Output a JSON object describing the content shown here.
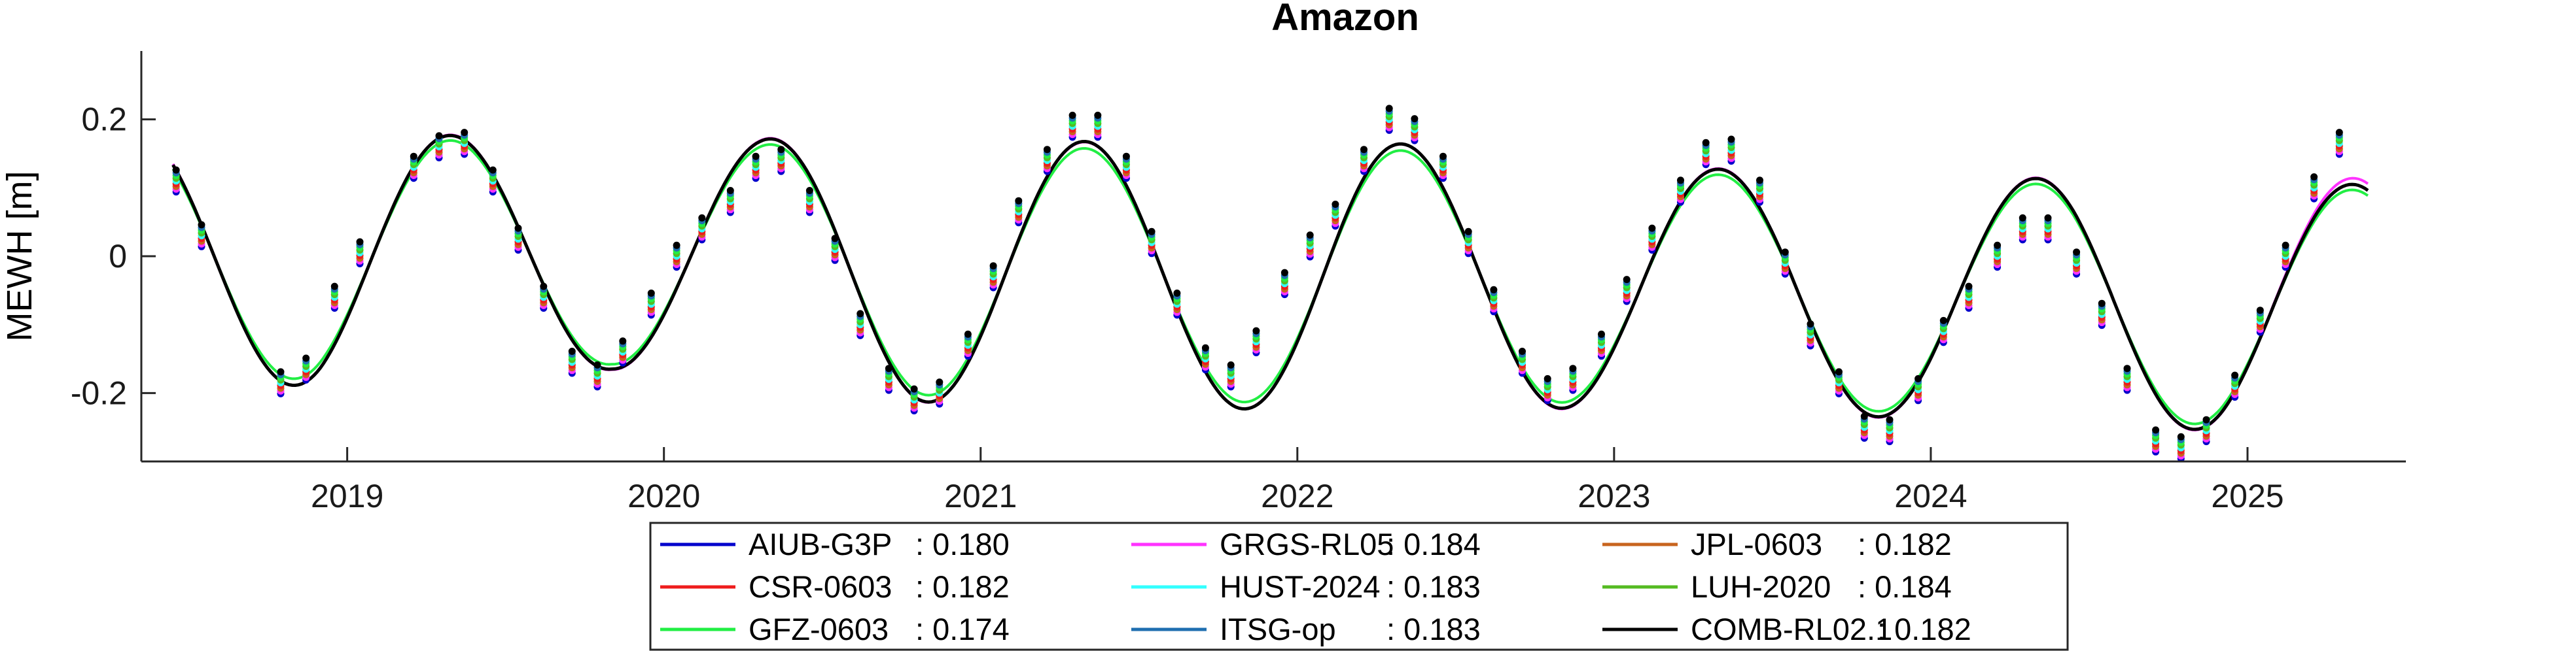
{
  "chart_data": {
    "type": "line",
    "title": "Amazon",
    "xlabel": "",
    "ylabel": "MEWH [m]",
    "xlim": [
      2018.35,
      2025.5
    ],
    "ylim": [
      -0.3,
      0.3
    ],
    "x_ticks": [
      2019,
      2020,
      2021,
      2022,
      2023,
      2024,
      2025
    ],
    "x_tick_labels": [
      "2019",
      "2020",
      "2021",
      "2022",
      "2023",
      "2024",
      "2025"
    ],
    "y_ticks": [
      -0.2,
      0,
      0.2
    ],
    "y_tick_labels": [
      "-0.2",
      "0",
      "0.2"
    ],
    "grid": false,
    "legend_position": "bottom-center",
    "fit": {
      "period_years": 1.0,
      "phase_peak_year_fraction": 0.33,
      "start_x": 2018.45,
      "end_x": 2025.38
    },
    "series": [
      {
        "name": "AIUB-G3P",
        "value": "0.180",
        "color": "#0000cc"
      },
      {
        "name": "GRGS-RL05",
        "value": "0.184",
        "color": "#ff33ff"
      },
      {
        "name": "JPL-0603",
        "value": "0.182",
        "color": "#c8641e"
      },
      {
        "name": "CSR-0603",
        "value": "0.182",
        "color": "#ee1c1c"
      },
      {
        "name": "HUST-2024",
        "value": "0.183",
        "color": "#33ffff"
      },
      {
        "name": "LUH-2020",
        "value": "0.184",
        "color": "#55bb22"
      },
      {
        "name": "GFZ-0603",
        "value": "0.174",
        "color": "#22ee44"
      },
      {
        "name": "ITSG-op",
        "value": "0.183",
        "color": "#1f6fb0"
      },
      {
        "name": "COMB-RL02.1",
        "value": "0.182",
        "color": "#000000"
      }
    ],
    "fitted_curves": [
      {
        "name": "AIUB-G3P",
        "color": "#0000cc",
        "amplitudes": [
          0.183,
          0.19,
          0.175,
          0.165,
          0.18,
          0.2,
          0.2,
          0.19,
          0.2,
          0.185,
          0.18,
          0.175,
          0.175,
          0.18,
          0.18,
          0.18
        ],
        "offsets": [
          0,
          0,
          0,
          0,
          -0.01,
          -0.01,
          -0.03,
          -0.03,
          -0.03,
          -0.03,
          -0.05,
          -0.05,
          -0.065,
          -0.065,
          -0.075,
          -0.075
        ]
      },
      {
        "name": "GRGS-RL05",
        "color": "#ff33ff",
        "amplitudes": [
          0.185,
          0.19,
          0.176,
          0.166,
          0.181,
          0.201,
          0.199,
          0.19,
          0.199,
          0.186,
          0.181,
          0.176,
          0.176,
          0.181,
          0.181,
          0.185
        ],
        "offsets": [
          0,
          0,
          0,
          0,
          -0.01,
          -0.01,
          -0.03,
          -0.03,
          -0.03,
          -0.03,
          -0.05,
          -0.05,
          -0.065,
          -0.065,
          -0.075,
          -0.07
        ]
      },
      {
        "name": "JPL-0603",
        "color": "#c8641e",
        "amplitudes": [
          0.183,
          0.19,
          0.175,
          0.165,
          0.18,
          0.2,
          0.2,
          0.19,
          0.2,
          0.185,
          0.18,
          0.175,
          0.175,
          0.18,
          0.18,
          0.18
        ],
        "offsets": [
          0,
          0,
          0,
          0,
          -0.01,
          -0.01,
          -0.03,
          -0.03,
          -0.03,
          -0.03,
          -0.05,
          -0.05,
          -0.065,
          -0.065,
          -0.075,
          -0.075
        ]
      },
      {
        "name": "CSR-0603",
        "color": "#ee1c1c",
        "amplitudes": [
          0.183,
          0.19,
          0.175,
          0.165,
          0.18,
          0.2,
          0.2,
          0.19,
          0.2,
          0.185,
          0.18,
          0.175,
          0.175,
          0.18,
          0.18,
          0.18
        ],
        "offsets": [
          0,
          0,
          0,
          0,
          -0.01,
          -0.01,
          -0.03,
          -0.03,
          -0.03,
          -0.03,
          -0.05,
          -0.05,
          -0.065,
          -0.065,
          -0.075,
          -0.075
        ]
      },
      {
        "name": "HUST-2024",
        "color": "#33ffff",
        "amplitudes": [
          0.183,
          0.19,
          0.175,
          0.165,
          0.18,
          0.2,
          0.2,
          0.19,
          0.2,
          0.185,
          0.18,
          0.175,
          0.175,
          0.18,
          0.18,
          0.18
        ],
        "offsets": [
          0,
          0,
          0,
          0,
          -0.01,
          -0.01,
          -0.03,
          -0.03,
          -0.03,
          -0.03,
          -0.05,
          -0.05,
          -0.065,
          -0.065,
          -0.075,
          -0.075
        ]
      },
      {
        "name": "LUH-2020",
        "color": "#55bb22",
        "amplitudes": [
          0.183,
          0.19,
          0.175,
          0.165,
          0.18,
          0.2,
          0.2,
          0.19,
          0.2,
          0.185,
          0.18,
          0.175,
          0.175,
          0.18,
          0.18,
          0.18
        ],
        "offsets": [
          0,
          0,
          0,
          0,
          -0.01,
          -0.01,
          -0.03,
          -0.03,
          -0.03,
          -0.03,
          -0.05,
          -0.05,
          -0.065,
          -0.065,
          -0.075,
          -0.075
        ]
      },
      {
        "name": "GFZ-0603",
        "color": "#22ee44",
        "amplitudes": [
          0.175,
          0.18,
          0.168,
          0.158,
          0.172,
          0.19,
          0.19,
          0.18,
          0.19,
          0.176,
          0.172,
          0.167,
          0.167,
          0.172,
          0.172,
          0.172
        ],
        "offsets": [
          0,
          0,
          0,
          0,
          -0.01,
          -0.01,
          -0.03,
          -0.03,
          -0.03,
          -0.03,
          -0.05,
          -0.05,
          -0.065,
          -0.065,
          -0.075,
          -0.075
        ]
      },
      {
        "name": "ITSG-op",
        "color": "#1f6fb0",
        "amplitudes": [
          0.183,
          0.19,
          0.175,
          0.165,
          0.18,
          0.2,
          0.2,
          0.19,
          0.2,
          0.185,
          0.18,
          0.175,
          0.175,
          0.18,
          0.18,
          0.18
        ],
        "offsets": [
          0,
          0,
          0,
          0,
          -0.01,
          -0.01,
          -0.03,
          -0.03,
          -0.03,
          -0.03,
          -0.05,
          -0.05,
          -0.065,
          -0.065,
          -0.075,
          -0.075
        ]
      },
      {
        "name": "COMB-RL02.1",
        "color": "#000000",
        "amplitudes": [
          0.183,
          0.19,
          0.175,
          0.165,
          0.18,
          0.2,
          0.2,
          0.19,
          0.2,
          0.185,
          0.18,
          0.175,
          0.175,
          0.18,
          0.18,
          0.18
        ],
        "offsets": [
          0,
          0,
          0,
          0,
          -0.01,
          -0.01,
          -0.03,
          -0.03,
          -0.03,
          -0.03,
          -0.05,
          -0.05,
          -0.065,
          -0.065,
          -0.075,
          -0.075
        ]
      }
    ],
    "observations": {
      "x": [
        2018.46,
        2018.54,
        2018.79,
        2018.87,
        2018.96,
        2019.04,
        2019.21,
        2019.29,
        2019.37,
        2019.46,
        2019.54,
        2019.62,
        2019.71,
        2019.79,
        2019.87,
        2019.96,
        2020.04,
        2020.12,
        2020.21,
        2020.29,
        2020.37,
        2020.46,
        2020.54,
        2020.62,
        2020.71,
        2020.79,
        2020.87,
        2020.96,
        2021.04,
        2021.12,
        2021.21,
        2021.29,
        2021.37,
        2021.46,
        2021.54,
        2021.62,
        2021.71,
        2021.79,
        2021.87,
        2021.96,
        2022.04,
        2022.12,
        2022.21,
        2022.29,
        2022.37,
        2022.46,
        2022.54,
        2022.62,
        2022.71,
        2022.79,
        2022.87,
        2022.96,
        2023.04,
        2023.12,
        2023.21,
        2023.29,
        2023.37,
        2023.46,
        2023.54,
        2023.62,
        2023.71,
        2023.79,
        2023.87,
        2023.96,
        2024.04,
        2024.12,
        2024.21,
        2024.29,
        2024.37,
        2024.46,
        2024.54,
        2024.62,
        2024.71,
        2024.79,
        2024.87,
        2024.96,
        2025.04,
        2025.12,
        2025.21,
        2025.29
      ],
      "y": [
        0.11,
        0.03,
        -0.185,
        -0.165,
        -0.06,
        0.005,
        0.13,
        0.16,
        0.165,
        0.11,
        0.025,
        -0.06,
        -0.155,
        -0.175,
        -0.14,
        -0.07,
        0.0,
        0.04,
        0.08,
        0.13,
        0.14,
        0.08,
        0.01,
        -0.1,
        -0.18,
        -0.21,
        -0.2,
        -0.13,
        -0.03,
        0.065,
        0.14,
        0.19,
        0.19,
        0.13,
        0.02,
        -0.07,
        -0.15,
        -0.175,
        -0.125,
        -0.04,
        0.015,
        0.06,
        0.14,
        0.2,
        0.185,
        0.13,
        0.02,
        -0.065,
        -0.155,
        -0.195,
        -0.18,
        -0.13,
        -0.05,
        0.025,
        0.095,
        0.15,
        0.155,
        0.095,
        -0.01,
        -0.115,
        -0.185,
        -0.25,
        -0.255,
        -0.195,
        -0.11,
        -0.06,
        0.0,
        0.04,
        0.04,
        -0.01,
        -0.085,
        -0.18,
        -0.27,
        -0.28,
        -0.255,
        -0.19,
        -0.095,
        0.0,
        0.1,
        0.165
      ]
    }
  }
}
